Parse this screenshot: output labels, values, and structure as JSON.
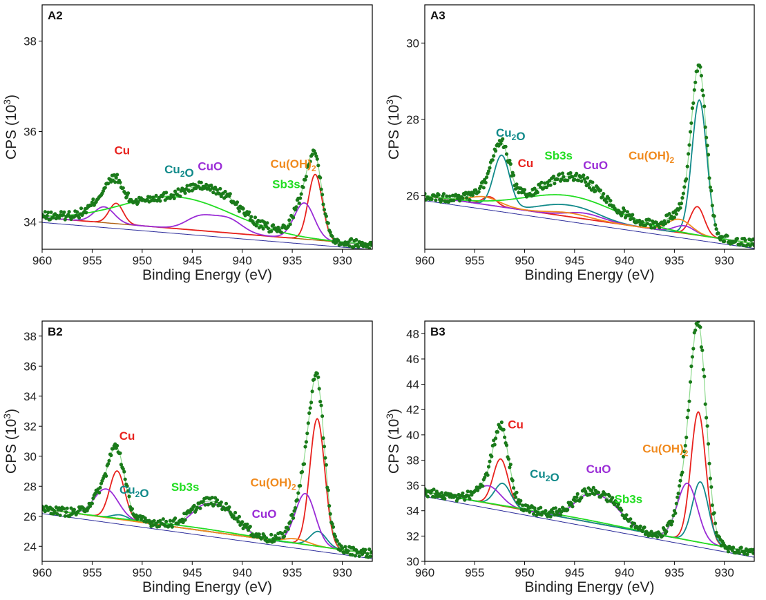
{
  "figure": {
    "description_label": "XPS Cu 2p spectra panels",
    "colors": {
      "data": "#1a7a1a",
      "Cu": "#e8221e",
      "Cu2O": "#118a8a",
      "CuO": "#9a2cd6",
      "CuOH2": "#f08a1e",
      "Sb3s": "#22dd22",
      "baseline": "#b06010",
      "background": "#2a2a9a"
    }
  },
  "chart_data": [
    {
      "id": "A2",
      "type": "line",
      "title": "A2",
      "xlabel": "Binding Energy (eV)",
      "ylabel_main": "CPS (10",
      "ylabel_sup": "3",
      "ylabel_close": ")",
      "xlim": [
        960,
        927
      ],
      "ylim": [
        33.4,
        38.8
      ],
      "xticks": [
        960,
        955,
        950,
        945,
        940,
        935,
        930
      ],
      "yticks": [
        34,
        36,
        38
      ],
      "baseline": [
        [
          960,
          34.1
        ],
        [
          927,
          33.5
        ]
      ],
      "components": [
        {
          "name": "Cu",
          "label_parts": [
            [
              "Cu",
              ""
            ]
          ],
          "color_key": "Cu",
          "peaks": [
            [
              952.6,
              0.45,
              0.7
            ],
            [
              932.7,
              1.45,
              0.7
            ]
          ]
        },
        {
          "name": "Cu2O",
          "label_parts": [
            [
              "Cu",
              ""
            ],
            [
              "2",
              "sub"
            ],
            [
              "O",
              ""
            ]
          ],
          "color_key": "Cu2O",
          "peaks": []
        },
        {
          "name": "CuO",
          "label_parts": [
            [
              "CuO",
              ""
            ]
          ],
          "color_key": "CuO",
          "peaks": [
            [
              953.8,
              0.35,
              1.0
            ],
            [
              944.2,
              0.3,
              1.4
            ],
            [
              941.4,
              0.3,
              1.4
            ],
            [
              933.8,
              0.8,
              1.0
            ]
          ]
        },
        {
          "name": "Cu(OH)2",
          "label_parts": [
            [
              "Cu(OH)",
              ""
            ],
            [
              "2",
              "sub"
            ]
          ],
          "color_key": "CuOH2",
          "peaks": []
        },
        {
          "name": "Sb3s",
          "label_parts": [
            [
              "Sb3s",
              ""
            ]
          ],
          "color_key": "Sb3s",
          "peaks": [
            [
              946.5,
              0.7,
              5.5
            ]
          ]
        }
      ],
      "labels": [
        {
          "series": "Cu",
          "x": 952.0,
          "y": 35.5
        },
        {
          "series": "Cu2O",
          "x": 946.3,
          "y": 35.08
        },
        {
          "series": "CuO",
          "x": 943.2,
          "y": 35.15
        },
        {
          "series": "Cu(OH)2",
          "x": 934.9,
          "y": 35.2
        },
        {
          "series": "Sb3s",
          "x": 935.6,
          "y": 34.75
        }
      ]
    },
    {
      "id": "A3",
      "type": "line",
      "title": "A3",
      "xlabel": "Binding Energy (eV)",
      "ylabel_main": "CPS (10",
      "ylabel_sup": "3",
      "ylabel_close": ")",
      "xlim": [
        960,
        927
      ],
      "ylim": [
        24.6,
        31.0
      ],
      "xticks": [
        960,
        955,
        950,
        945,
        940,
        935,
        930
      ],
      "yticks": [
        26,
        28,
        30
      ],
      "baseline": [
        [
          960,
          26.0
        ],
        [
          927,
          24.75
        ]
      ],
      "components": [
        {
          "name": "Cu",
          "label_parts": [
            [
              "Cu",
              ""
            ]
          ],
          "color_key": "Cu",
          "peaks": [
            [
              953.5,
              0.22,
              0.7
            ],
            [
              932.7,
              0.75,
              0.7
            ]
          ]
        },
        {
          "name": "Cu2O",
          "label_parts": [
            [
              "Cu",
              ""
            ],
            [
              "2",
              "sub"
            ],
            [
              "O",
              ""
            ]
          ],
          "color_key": "Cu2O",
          "peaks": [
            [
              952.3,
              1.35,
              0.8
            ],
            [
              947.0,
              0.2,
              2.0
            ],
            [
              944.0,
              0.2,
              2.0
            ],
            [
              932.5,
              3.55,
              0.75
            ]
          ]
        },
        {
          "name": "CuO",
          "label_parts": [
            [
              "CuO",
              ""
            ]
          ],
          "color_key": "CuO",
          "peaks": [
            [
              944.0,
              0.15,
              1.8
            ],
            [
              934.0,
              0.2,
              1.0
            ]
          ]
        },
        {
          "name": "Cu(OH)2",
          "label_parts": [
            [
              "Cu(OH)",
              ""
            ],
            [
              "2",
              "sub"
            ]
          ],
          "color_key": "CuOH2",
          "peaks": [
            [
              954.0,
              0.2,
              1.5
            ],
            [
              934.5,
              0.35,
              1.2
            ],
            [
              945.5,
              0.1,
              2.0
            ]
          ]
        },
        {
          "name": "Sb3s",
          "label_parts": [
            [
              "Sb3s",
              ""
            ]
          ],
          "color_key": "Sb3s",
          "peaks": [
            [
              945.5,
              0.55,
              4.5
            ]
          ]
        }
      ],
      "labels": [
        {
          "series": "Cu2O",
          "x": 951.4,
          "y": 27.55
        },
        {
          "series": "Cu",
          "x": 949.9,
          "y": 26.75
        },
        {
          "series": "Sb3s",
          "x": 946.6,
          "y": 26.95
        },
        {
          "series": "CuO",
          "x": 942.9,
          "y": 26.7
        },
        {
          "series": "Cu(OH)2",
          "x": 937.3,
          "y": 26.95
        }
      ]
    },
    {
      "id": "B2",
      "type": "line",
      "title": "B2",
      "xlabel": "Binding Energy (eV)",
      "ylabel_main": "CPS (10",
      "ylabel_sup": "3",
      "ylabel_close": ")",
      "xlim": [
        960,
        927
      ],
      "ylim": [
        23.0,
        39.0
      ],
      "xticks": [
        960,
        955,
        950,
        945,
        940,
        935,
        930
      ],
      "yticks": [
        24,
        26,
        28,
        30,
        32,
        34,
        36,
        38
      ],
      "baseline": [
        [
          960,
          26.5
        ],
        [
          927,
          23.5
        ]
      ],
      "components": [
        {
          "name": "Cu",
          "label_parts": [
            [
              "Cu",
              ""
            ]
          ],
          "color_key": "Cu",
          "peaks": [
            [
              952.5,
              3.2,
              0.75
            ],
            [
              932.5,
              8.5,
              0.75
            ]
          ]
        },
        {
          "name": "Cu2O",
          "label_parts": [
            [
              "Cu",
              ""
            ],
            [
              "2",
              "sub"
            ],
            [
              "O",
              ""
            ]
          ],
          "color_key": "Cu2O",
          "peaks": [
            [
              952.2,
              0.3,
              0.8
            ],
            [
              932.4,
              1.0,
              0.8
            ]
          ]
        },
        {
          "name": "CuO",
          "label_parts": [
            [
              "CuO",
              ""
            ]
          ],
          "color_key": "CuO",
          "peaks": [
            [
              953.6,
              1.9,
              1.2
            ],
            [
              943.8,
              1.5,
              1.4
            ],
            [
              941.4,
              1.2,
              1.4
            ],
            [
              933.7,
              3.4,
              1.0
            ]
          ]
        },
        {
          "name": "Cu(OH)2",
          "label_parts": [
            [
              "Cu(OH)",
              ""
            ],
            [
              "2",
              "sub"
            ]
          ],
          "color_key": "CuOH2",
          "peaks": [
            [
              934.6,
              0.3,
              1.2
            ]
          ]
        },
        {
          "name": "Sb3s",
          "label_parts": [
            [
              "Sb3s",
              ""
            ]
          ],
          "color_key": "Sb3s",
          "peaks": [
            [
              945.0,
              0.15,
              5.0
            ]
          ]
        }
      ],
      "labels": [
        {
          "series": "Cu",
          "x": 951.5,
          "y": 31.1
        },
        {
          "series": "Cu2O",
          "x": 950.8,
          "y": 27.5
        },
        {
          "series": "Sb3s",
          "x": 945.7,
          "y": 27.7
        },
        {
          "series": "Cu(OH)2",
          "x": 936.9,
          "y": 28.0
        },
        {
          "series": "CuO",
          "x": 937.8,
          "y": 25.9
        }
      ]
    },
    {
      "id": "B3",
      "type": "line",
      "title": "B3",
      "xlabel": "Binding Energy (eV)",
      "ylabel_main": "CPS (10",
      "ylabel_sup": "3",
      "ylabel_close": ")",
      "xlim": [
        960,
        927
      ],
      "ylim": [
        30.0,
        49.0
      ],
      "xticks": [
        960,
        955,
        950,
        945,
        940,
        935,
        930
      ],
      "yticks": [
        30,
        32,
        34,
        36,
        38,
        40,
        42,
        44,
        46,
        48
      ],
      "baseline": [
        [
          960,
          35.5
        ],
        [
          927,
          30.7
        ]
      ],
      "components": [
        {
          "name": "Cu",
          "label_parts": [
            [
              "Cu",
              ""
            ]
          ],
          "color_key": "Cu",
          "peaks": [
            [
              952.4,
              3.7,
              0.75
            ],
            [
              932.6,
              10.3,
              0.75
            ]
          ]
        },
        {
          "name": "Cu2O",
          "label_parts": [
            [
              "Cu",
              ""
            ],
            [
              "2",
              "sub"
            ],
            [
              "O",
              ""
            ]
          ],
          "color_key": "Cu2O",
          "peaks": [
            [
              952.2,
              1.8,
              0.8
            ],
            [
              932.4,
              4.8,
              0.8
            ]
          ]
        },
        {
          "name": "CuO",
          "label_parts": [
            [
              "CuO",
              ""
            ]
          ],
          "color_key": "CuO",
          "peaks": [
            [
              953.6,
              1.4,
              1.2
            ],
            [
              943.8,
              1.8,
              1.4
            ],
            [
              941.4,
              1.5,
              1.4
            ],
            [
              933.7,
              4.5,
              1.0
            ]
          ]
        },
        {
          "name": "Cu(OH)2",
          "label_parts": [
            [
              "Cu(OH)",
              ""
            ],
            [
              "2",
              "sub"
            ]
          ],
          "color_key": "CuOH2",
          "peaks": []
        },
        {
          "name": "Sb3s",
          "label_parts": [
            [
              "Sb3s",
              ""
            ]
          ],
          "color_key": "Sb3s",
          "peaks": [
            [
              945.0,
              0.15,
              5.0
            ]
          ]
        }
      ],
      "labels": [
        {
          "series": "Cu",
          "x": 950.9,
          "y": 40.5
        },
        {
          "series": "Cu2O",
          "x": 948.0,
          "y": 36.6
        },
        {
          "series": "CuO",
          "x": 942.6,
          "y": 37.0
        },
        {
          "series": "Cu(OH)2",
          "x": 935.9,
          "y": 38.6
        },
        {
          "series": "Sb3s",
          "x": 939.6,
          "y": 34.6
        }
      ]
    }
  ]
}
